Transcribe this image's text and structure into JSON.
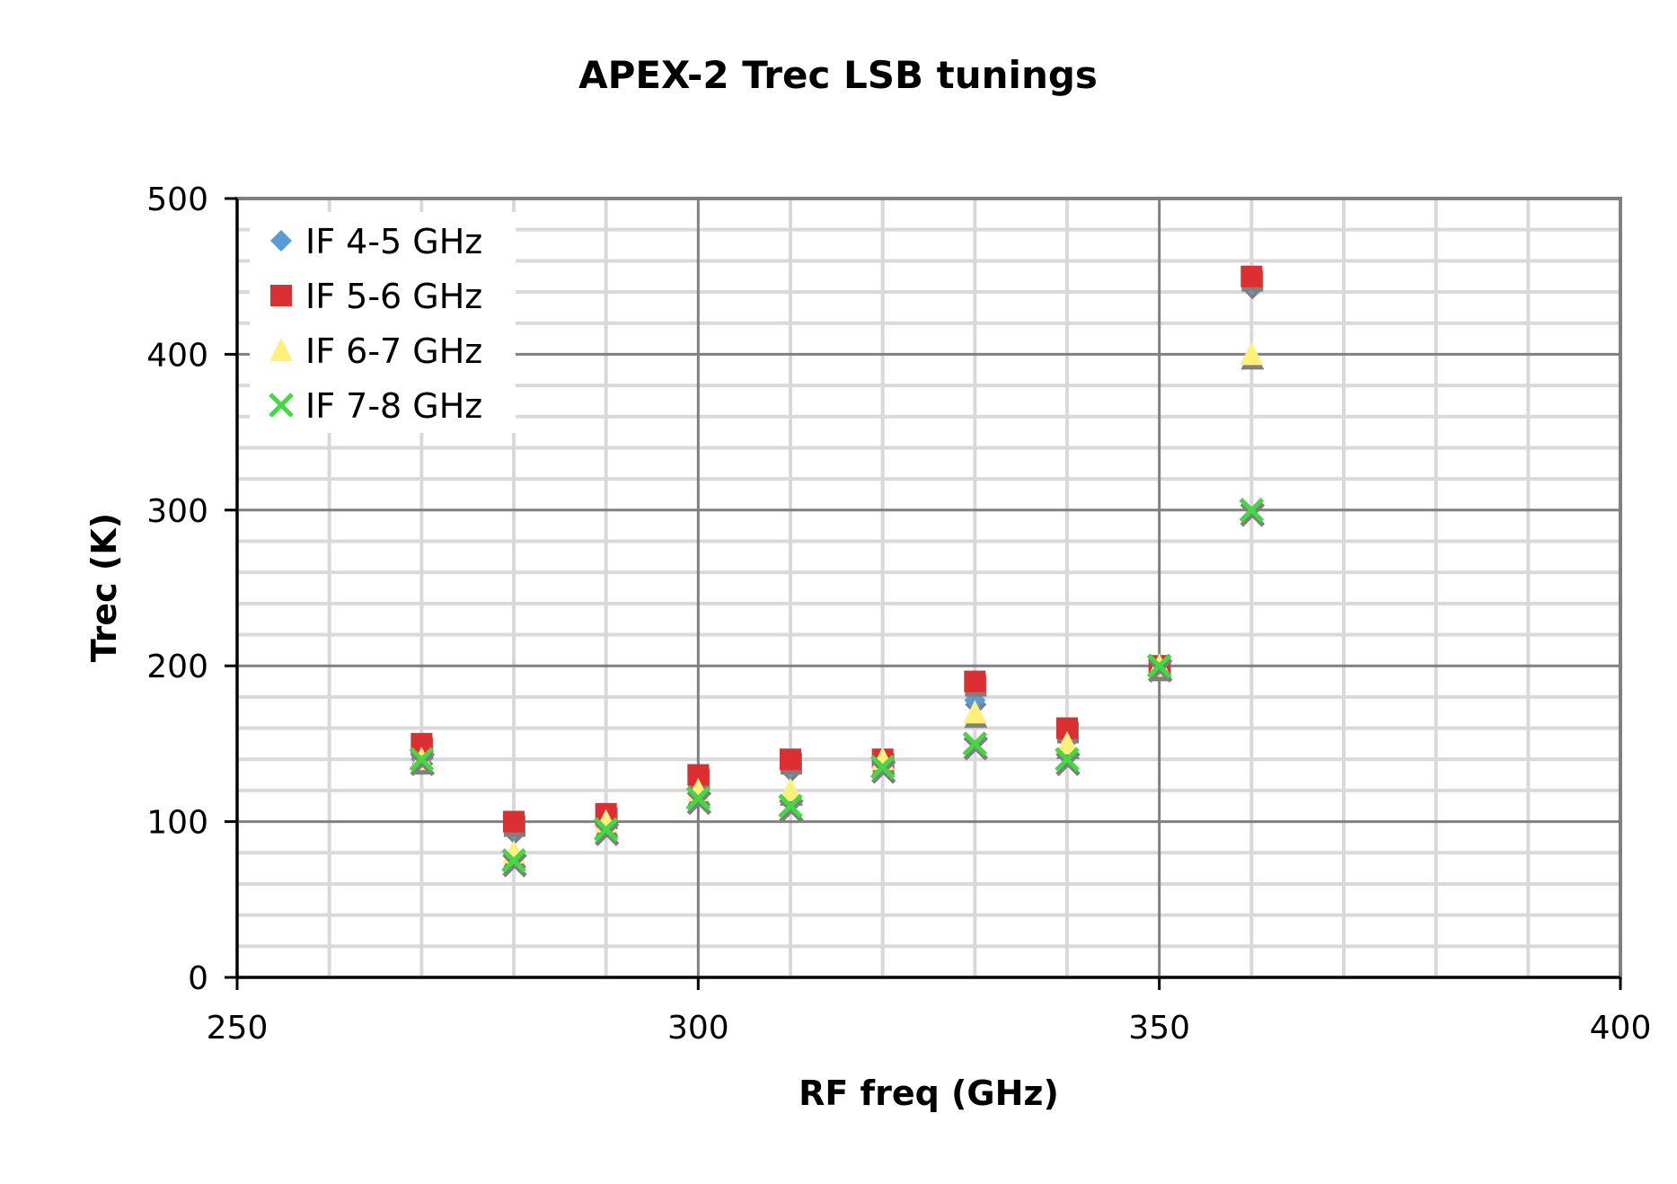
{
  "chart_data": {
    "type": "scatter",
    "title": "APEX-2 Trec LSB tunings",
    "xlabel": "RF freq (GHz)",
    "ylabel": "Trec (K)",
    "xlim": [
      250,
      400
    ],
    "ylim": [
      0,
      500
    ],
    "x_major_step": 50,
    "x_minor_step": 10,
    "y_major_step": 100,
    "y_minor_step": 20,
    "x_ticks": [
      250,
      300,
      350,
      400
    ],
    "y_ticks": [
      0,
      100,
      200,
      300,
      400,
      500
    ],
    "grid": true,
    "legend_position": "top-left",
    "series": [
      {
        "name": "IF 4-5 GHz",
        "marker": "diamond",
        "color": "#5b9bd5",
        "x": [
          270,
          280,
          290,
          300,
          310,
          320,
          330,
          340,
          350,
          360
        ],
        "y": [
          140,
          95,
          100,
          125,
          135,
          140,
          178,
          155,
          200,
          445
        ]
      },
      {
        "name": "IF 5-6 GHz",
        "marker": "square",
        "color": "#dc2f34",
        "x": [
          270,
          280,
          290,
          300,
          310,
          320,
          330,
          340,
          350,
          360
        ],
        "y": [
          150,
          100,
          105,
          130,
          140,
          140,
          190,
          160,
          200,
          450
        ]
      },
      {
        "name": "IF 6-7 GHz",
        "marker": "triangle",
        "color": "#fff07a",
        "x": [
          270,
          280,
          290,
          300,
          310,
          320,
          330,
          340,
          350,
          360
        ],
        "y": [
          140,
          80,
          100,
          120,
          120,
          140,
          170,
          150,
          200,
          400
        ]
      },
      {
        "name": "IF 7-8 GHz",
        "marker": "x",
        "color": "#45d845",
        "x": [
          270,
          280,
          290,
          300,
          310,
          320,
          330,
          340,
          350,
          360
        ],
        "y": [
          140,
          75,
          95,
          115,
          110,
          135,
          150,
          140,
          200,
          300
        ]
      }
    ]
  }
}
